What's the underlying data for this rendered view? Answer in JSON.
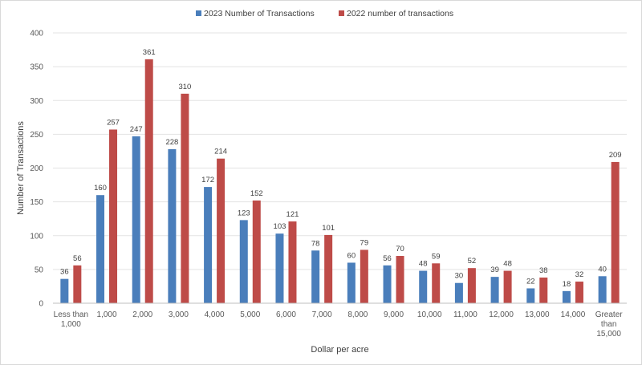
{
  "chart_data": {
    "type": "bar",
    "title": "",
    "xlabel": "Dollar per acre",
    "ylabel": "Number of Transactions",
    "ylim": [
      0,
      400
    ],
    "yticks": [
      0,
      50,
      100,
      150,
      200,
      250,
      300,
      350,
      400
    ],
    "grid": true,
    "legend_position": "top",
    "categories": [
      "Less than 1,000",
      "1,000",
      "2,000",
      "3,000",
      "4,000",
      "5,000",
      "6,000",
      "7,000",
      "8,000",
      "9,000",
      "10,000",
      "11,000",
      "12,000",
      "13,000",
      "14,000",
      "Greater than 15,000"
    ],
    "series": [
      {
        "name": "2023 Number of Transactions",
        "color": "#4a7ebb",
        "values": [
          36,
          160,
          247,
          228,
          172,
          123,
          103,
          78,
          60,
          56,
          48,
          30,
          39,
          22,
          18,
          40
        ]
      },
      {
        "name": "2022 number of transactions",
        "color": "#be4b48",
        "values": [
          56,
          257,
          361,
          310,
          214,
          152,
          121,
          101,
          79,
          70,
          59,
          52,
          48,
          38,
          32,
          209
        ]
      }
    ]
  }
}
